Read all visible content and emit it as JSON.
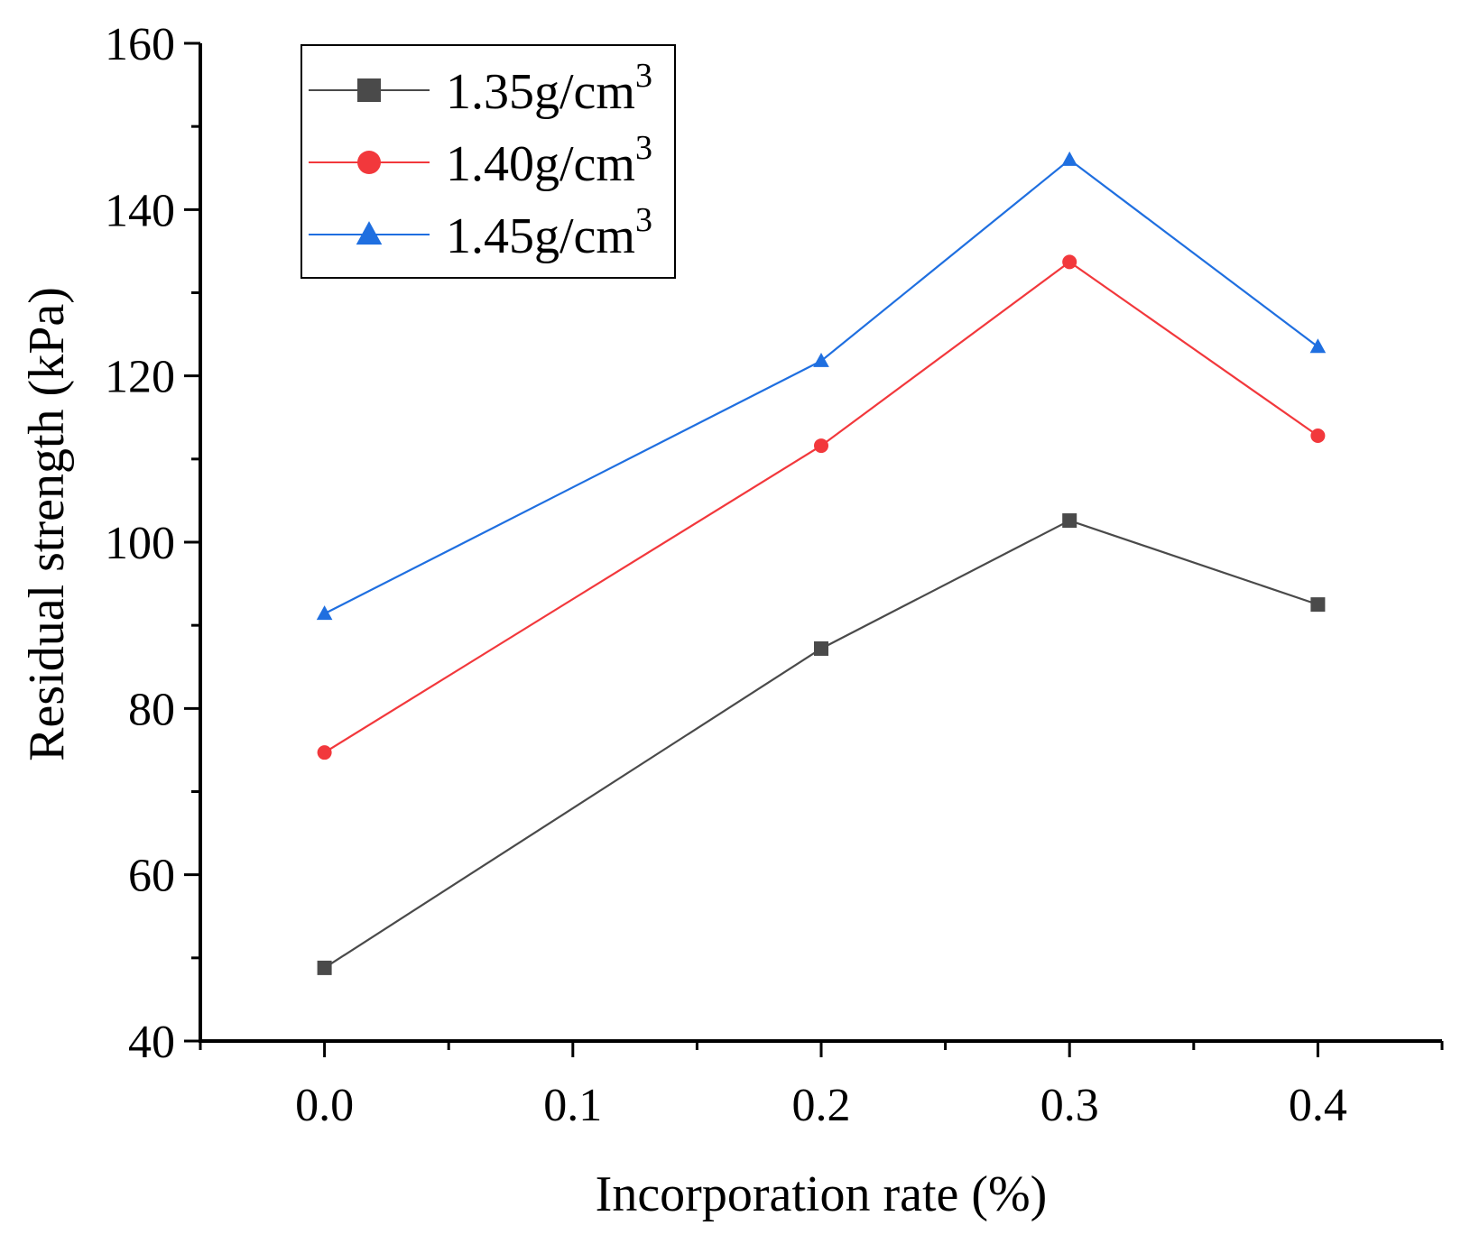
{
  "chart_data": {
    "type": "line",
    "title": "",
    "xlabel": "Incorporation rate (%)",
    "ylabel": "Residual strength (kPa)",
    "xlim": [
      -0.05,
      0.45
    ],
    "ylim": [
      40,
      160
    ],
    "x_ticks": [
      0.0,
      0.1,
      0.2,
      0.3,
      0.4
    ],
    "x_tick_labels": [
      "0.0",
      "0.1",
      "0.2",
      "0.3",
      "0.4"
    ],
    "x_minor_ticks": [
      -0.05,
      0.05,
      0.15,
      0.25,
      0.35,
      0.45
    ],
    "y_ticks": [
      40,
      60,
      80,
      100,
      120,
      140,
      160
    ],
    "y_tick_labels": [
      "40",
      "60",
      "80",
      "100",
      "120",
      "140",
      "160"
    ],
    "y_minor_ticks": [
      50,
      70,
      90,
      110,
      130,
      150
    ],
    "grid": false,
    "legend_position": "top-left",
    "series": [
      {
        "name": "1.35g/cm",
        "name_superscript": "3",
        "marker": "square",
        "color": "#4a4a4a",
        "x": [
          0.0,
          0.2,
          0.3,
          0.4
        ],
        "values": [
          48.8,
          87.2,
          102.6,
          92.5
        ]
      },
      {
        "name": "1.40g/cm",
        "name_superscript": "3",
        "marker": "circle",
        "color": "#f2383c",
        "x": [
          0.0,
          0.2,
          0.3,
          0.4
        ],
        "values": [
          74.7,
          111.6,
          133.7,
          112.8
        ]
      },
      {
        "name": "1.45g/cm",
        "name_superscript": "3",
        "marker": "triangle",
        "color": "#1f6fe0",
        "x": [
          0.0,
          0.2,
          0.3,
          0.4
        ],
        "values": [
          91.4,
          121.8,
          146.0,
          123.5
        ]
      }
    ]
  }
}
